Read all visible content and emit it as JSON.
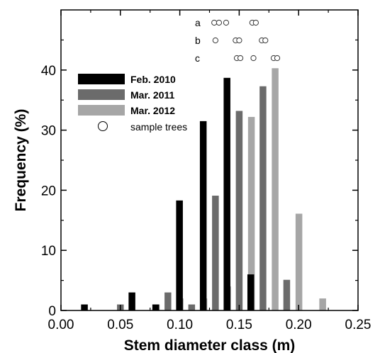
{
  "chart_data": {
    "type": "bar",
    "xlabel": "Stem diameter class (m)",
    "ylabel": "Frequency (%)",
    "xlim": [
      0.0,
      0.25
    ],
    "ylim": [
      0,
      50
    ],
    "x_ticks": [
      "0.00",
      "0.05",
      "0.10",
      "0.15",
      "0.20",
      "0.25"
    ],
    "y_ticks": [
      "0",
      "10",
      "20",
      "30",
      "40"
    ],
    "class_width": 0.02,
    "class_centers": [
      0.03,
      0.05,
      0.07,
      0.09,
      0.11,
      0.13,
      0.15,
      0.17,
      0.19,
      0.21
    ],
    "series": [
      {
        "name": "Feb. 2010",
        "color": "#000000",
        "values": [
          1.0,
          0,
          3.0,
          1.0,
          18.3,
          31.5,
          38.7,
          6.0,
          0,
          0
        ]
      },
      {
        "name": "Mar. 2011",
        "color": "#6b6b6b",
        "values": [
          0,
          1.0,
          0,
          3.0,
          1.0,
          19.1,
          33.2,
          37.3,
          5.1,
          0
        ]
      },
      {
        "name": "Mar. 2012",
        "color": "#a6a6a6",
        "values": [
          0,
          0,
          1.0,
          2.0,
          2.0,
          4.0,
          32.2,
          40.3,
          16.1,
          2.0
        ]
      }
    ],
    "sample_trees_label": "sample trees",
    "sample_trees": [
      {
        "label": "a",
        "x": [
          0.129,
          0.133,
          0.139,
          0.161,
          0.164
        ]
      },
      {
        "label": "b",
        "x": [
          0.13,
          0.147,
          0.15,
          0.169,
          0.172
        ]
      },
      {
        "label": "c",
        "x": [
          0.148,
          0.151,
          0.162,
          0.179,
          0.182
        ]
      }
    ],
    "grid": false,
    "legend_position": "top-left"
  }
}
